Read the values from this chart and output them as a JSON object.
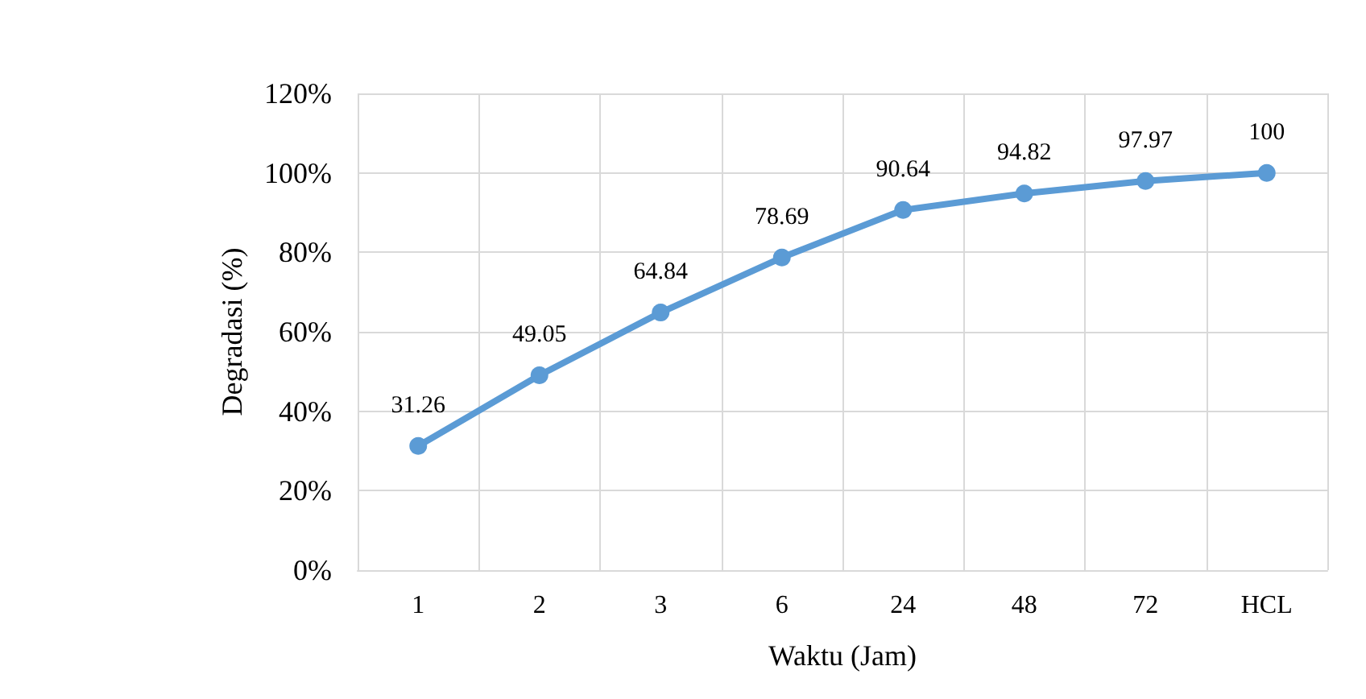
{
  "chart_data": {
    "type": "line",
    "xlabel": "Waktu (Jam)",
    "ylabel": "Degradasi (%)",
    "categories": [
      "1",
      "2",
      "3",
      "6",
      "24",
      "48",
      "72",
      "HCL"
    ],
    "series": [
      {
        "color": "#5b9bd5",
        "values": [
          31.26,
          49.05,
          64.84,
          78.69,
          90.64,
          94.82,
          97.97,
          100
        ]
      }
    ],
    "ylim": [
      0,
      120
    ],
    "yticks": [
      {
        "value": 0,
        "label": "0%"
      },
      {
        "value": 20,
        "label": "20%"
      },
      {
        "value": 40,
        "label": "40%"
      },
      {
        "value": 60,
        "label": "60%"
      },
      {
        "value": 80,
        "label": "80%"
      },
      {
        "value": 100,
        "label": "100%"
      },
      {
        "value": 120,
        "label": "120%"
      }
    ],
    "grid": true,
    "marker": "circle",
    "line_style": "solid",
    "data_labels": true
  }
}
